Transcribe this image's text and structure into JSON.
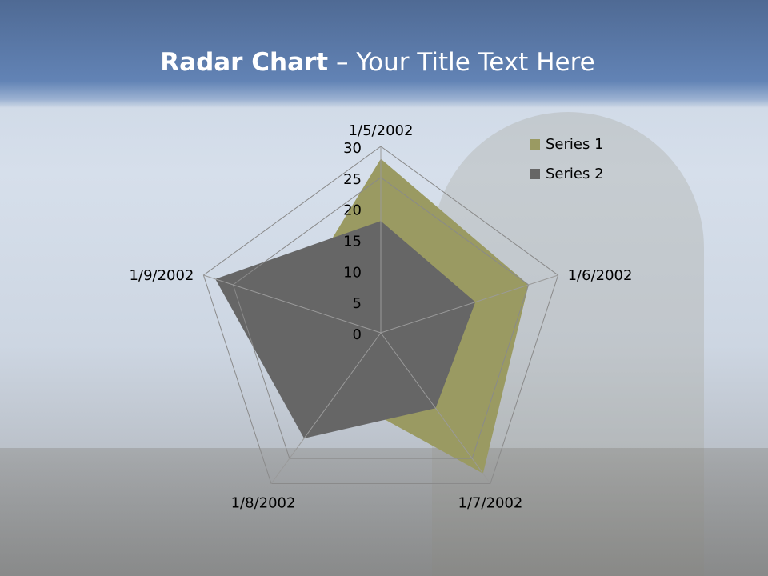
{
  "slide": {
    "title_bold": "Radar Chart",
    "title_rest": " – Your Title Text Here"
  },
  "chart_data": {
    "type": "radar",
    "categories": [
      "1/5/2002",
      "1/6/2002",
      "1/7/2002",
      "1/8/2002",
      "1/9/2002"
    ],
    "series": [
      {
        "name": "Series 1",
        "values": [
          28,
          25,
          28,
          12,
          15
        ],
        "color": "#9a9a62"
      },
      {
        "name": "Series 2",
        "values": [
          18,
          16,
          15,
          21,
          28
        ],
        "color": "#666666"
      }
    ],
    "rlim": [
      0,
      30
    ],
    "ticks": [
      "0",
      "5",
      "10",
      "15",
      "20",
      "25",
      "30"
    ],
    "gridlines_at": [
      25,
      30
    ],
    "legend": "top-right"
  }
}
